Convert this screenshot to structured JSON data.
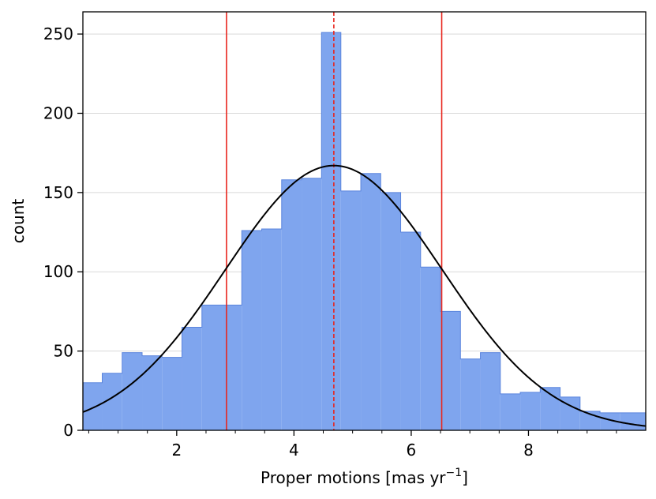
{
  "chart_data": {
    "type": "bar",
    "xlabel": "Proper motions [mas yr",
    "xlabel_sup": "−1",
    "xlabel_end": "]",
    "ylabel": "count",
    "xlim": [
      0.4,
      10.0
    ],
    "ylim": [
      0,
      264
    ],
    "x_ticks": [
      2,
      4,
      6,
      8
    ],
    "x_minor_ticks": [
      0.5,
      1.0,
      1.5,
      2.5,
      3.0,
      3.5,
      4.5,
      5.0,
      5.5,
      6.5,
      7.0,
      7.5,
      8.5,
      9.0,
      9.5
    ],
    "x_tick_labels": [
      "2",
      "4",
      "6",
      "8"
    ],
    "y_ticks": [
      0,
      50,
      100,
      150,
      200,
      250
    ],
    "y_tick_labels": [
      "0",
      "50",
      "100",
      "150",
      "200",
      "250"
    ],
    "grid": "horizontal",
    "bins": {
      "edges": [
        0.4,
        0.73,
        1.07,
        1.41,
        1.75,
        2.09,
        2.43,
        2.77,
        3.11,
        3.45,
        3.79,
        4.13,
        4.47,
        4.8,
        5.14,
        5.48,
        5.82,
        6.16,
        6.5,
        6.84,
        7.18,
        7.52,
        7.86,
        8.2,
        8.54,
        8.88,
        9.22,
        9.56,
        10.0
      ],
      "counts": [
        30,
        36,
        49,
        47,
        46,
        65,
        79,
        79,
        126,
        127,
        158,
        159,
        251,
        151,
        162,
        150,
        125,
        103,
        75,
        45,
        49,
        23,
        24,
        27,
        21,
        12,
        11,
        11
      ]
    },
    "fit_curve": {
      "type": "gaussian",
      "mean": 4.68,
      "sigma": 1.85,
      "amplitude": 167
    },
    "vlines": [
      {
        "x": 2.85,
        "style": "solid"
      },
      {
        "x": 4.68,
        "style": "dashed"
      },
      {
        "x": 6.52,
        "style": "solid"
      }
    ],
    "colors": {
      "bar_fill": "#7fa5ee",
      "bar_edge": "#5b85dd",
      "fit_line": "#000000",
      "vline": "#e8251d",
      "grid": "#d9d9d9"
    }
  }
}
